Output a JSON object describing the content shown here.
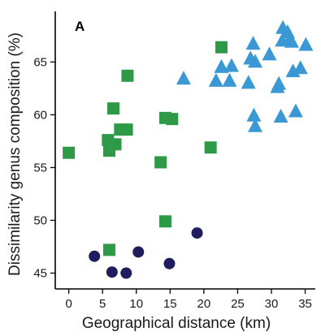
{
  "chart_data": {
    "type": "scatter",
    "panel_label": "A",
    "title": "",
    "xlabel": "Geographical distance (km)",
    "ylabel": "Dissimilarity genus composition (%)",
    "xlim": [
      -2,
      36.5
    ],
    "ylim": [
      43.5,
      69.8
    ],
    "xticks": [
      0,
      5,
      10,
      15,
      20,
      25,
      30,
      35
    ],
    "yticks": [
      45,
      50,
      55,
      60,
      65
    ],
    "grid": false,
    "legend": "none",
    "series": [
      {
        "marker": "square",
        "color": "#2e9a47",
        "points": [
          {
            "x": 0,
            "y": 56.4
          },
          {
            "x": 6.0,
            "y": 47.2
          },
          {
            "x": 5.8,
            "y": 57.6
          },
          {
            "x": 6.0,
            "y": 56.6
          },
          {
            "x": 6.9,
            "y": 57.2
          },
          {
            "x": 6.6,
            "y": 60.6
          },
          {
            "x": 7.6,
            "y": 58.6
          },
          {
            "x": 8.6,
            "y": 58.6
          },
          {
            "x": 8.7,
            "y": 63.7
          },
          {
            "x": 13.6,
            "y": 55.5
          },
          {
            "x": 14.3,
            "y": 59.7
          },
          {
            "x": 15.3,
            "y": 59.6
          },
          {
            "x": 14.3,
            "y": 49.9
          },
          {
            "x": 21.0,
            "y": 56.9
          },
          {
            "x": 22.6,
            "y": 66.4
          }
        ]
      },
      {
        "marker": "triangle",
        "color": "#3a98d4",
        "points": [
          {
            "x": 17.0,
            "y": 63.4
          },
          {
            "x": 21.8,
            "y": 63.2
          },
          {
            "x": 22.6,
            "y": 64.5
          },
          {
            "x": 23.8,
            "y": 63.2
          },
          {
            "x": 24.1,
            "y": 64.6
          },
          {
            "x": 26.6,
            "y": 63.0
          },
          {
            "x": 26.9,
            "y": 65.3
          },
          {
            "x": 27.3,
            "y": 66.7
          },
          {
            "x": 27.6,
            "y": 65.0
          },
          {
            "x": 27.4,
            "y": 59.9
          },
          {
            "x": 27.6,
            "y": 58.9
          },
          {
            "x": 29.7,
            "y": 65.7
          },
          {
            "x": 30.9,
            "y": 62.6
          },
          {
            "x": 31.1,
            "y": 62.9
          },
          {
            "x": 31.4,
            "y": 59.8
          },
          {
            "x": 31.6,
            "y": 67.0
          },
          {
            "x": 31.7,
            "y": 68.2
          },
          {
            "x": 32.4,
            "y": 67.8
          },
          {
            "x": 32.7,
            "y": 67.1
          },
          {
            "x": 33.0,
            "y": 66.9
          },
          {
            "x": 33.2,
            "y": 64.1
          },
          {
            "x": 33.6,
            "y": 60.3
          },
          {
            "x": 34.3,
            "y": 64.4
          },
          {
            "x": 35.1,
            "y": 66.6
          }
        ]
      },
      {
        "marker": "circle",
        "color": "#1f1d5e",
        "points": [
          {
            "x": 3.8,
            "y": 46.6
          },
          {
            "x": 6.4,
            "y": 45.1
          },
          {
            "x": 8.5,
            "y": 45.0
          },
          {
            "x": 10.3,
            "y": 47.0
          },
          {
            "x": 14.9,
            "y": 45.9
          },
          {
            "x": 19.0,
            "y": 48.8
          }
        ]
      }
    ]
  }
}
